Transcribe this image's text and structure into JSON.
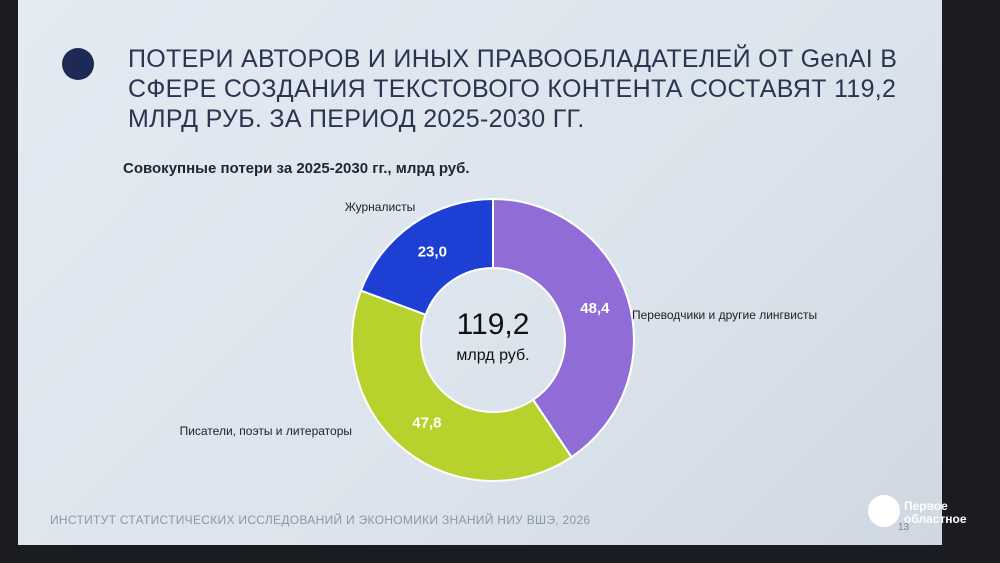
{
  "chart_data": {
    "type": "donut",
    "title": "ПОТЕРИ АВТОРОВ И ИНЫХ ПРАВООБЛАДАТЕЛЕЙ ОТ GenAI В СФЕРЕ СОЗДАНИЯ ТЕКСТОВОГО КОНТЕНТА СОСТАВЯТ 119,2 МЛРД РУБ. ЗА ПЕРИОД 2025-2030 ГГ.",
    "subtitle": "Совокупные потери за 2025-2030 гг., млрд руб.",
    "categories": [
      "Переводчики и другие лингвисты",
      "Писатели, поэты и литераторы",
      "Журналисты"
    ],
    "values": [
      48.4,
      47.8,
      23.0
    ],
    "value_labels": [
      "48,4",
      "47,8",
      "23,0"
    ],
    "colors": [
      "#8f6cd6",
      "#b7d22c",
      "#1e3fd4"
    ],
    "total": {
      "value": 119.2,
      "label": "119,2"
    },
    "total_unit": "млрд руб."
  },
  "footer": "ИНСТИТУТ СТАТИСТИЧЕСКИХ ИССЛЕДОВАНИЙ И ЭКОНОМИКИ ЗНАНИЙ НИУ ВШЭ, 2026",
  "page_number": 13,
  "watermark": "Первое областное"
}
